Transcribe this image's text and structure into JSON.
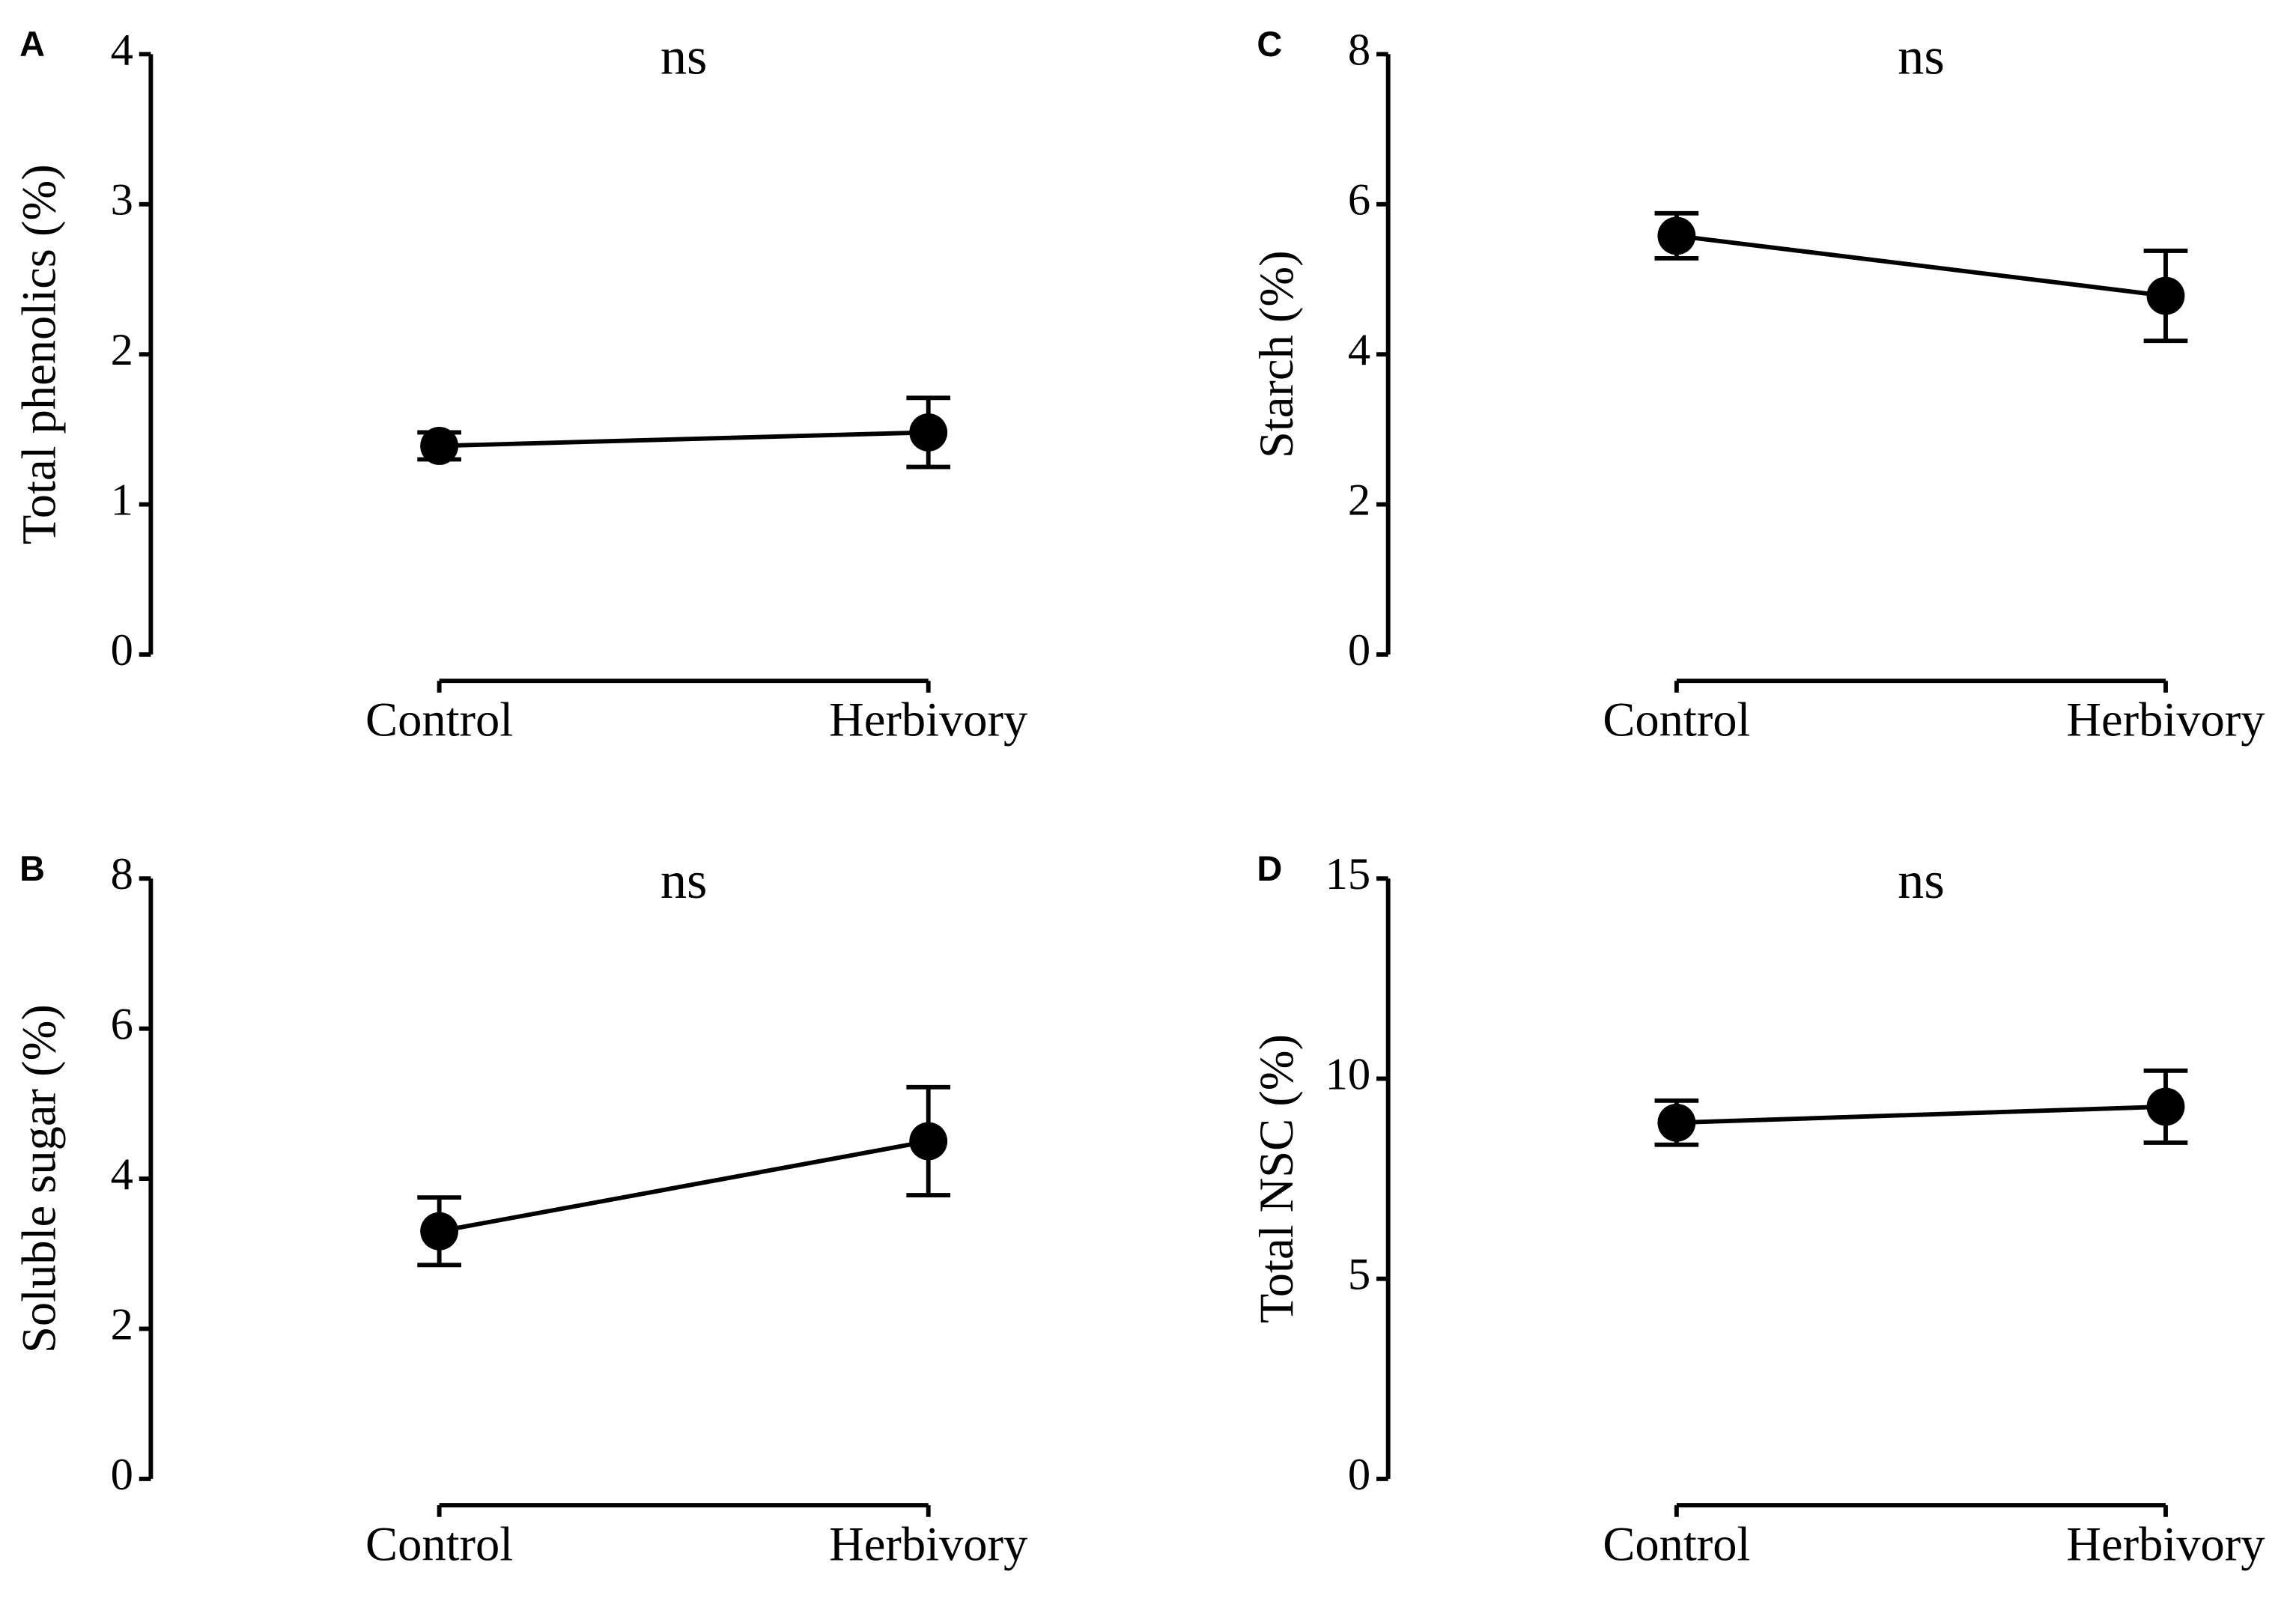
{
  "chart_data": [
    {
      "type": "line",
      "panel": "A",
      "annotation": "ns",
      "y_label": "Total phenolics (%)",
      "categories": [
        "Control",
        "Herbivory"
      ],
      "values": [
        1.39,
        1.48
      ],
      "errors": [
        0.09,
        0.23
      ],
      "color": "#000000",
      "ylim": [
        0,
        4
      ],
      "yticks": [
        0,
        1,
        2,
        3,
        4
      ]
    },
    {
      "type": "line",
      "panel": "B",
      "annotation": "ns",
      "y_label": "Soluble sugar (%)",
      "categories": [
        "Control",
        "Herbivory"
      ],
      "values": [
        3.3,
        4.5
      ],
      "errors": [
        0.45,
        0.72
      ],
      "color": "#000000",
      "ylim": [
        0,
        8
      ],
      "yticks": [
        0,
        2,
        4,
        6,
        8
      ]
    },
    {
      "type": "line",
      "panel": "C",
      "annotation": "ns",
      "y_label": "Starch (%)",
      "categories": [
        "Control",
        "Herbivory"
      ],
      "values": [
        5.58,
        4.78
      ],
      "errors": [
        0.3,
        0.6
      ],
      "color": "#000000",
      "ylim": [
        0,
        8
      ],
      "yticks": [
        0,
        2,
        4,
        6,
        8
      ]
    },
    {
      "type": "line",
      "panel": "D",
      "annotation": "ns",
      "y_label": "Total NSC (%)",
      "categories": [
        "Control",
        "Herbivory"
      ],
      "values": [
        8.9,
        9.3
      ],
      "errors": [
        0.55,
        0.9
      ],
      "color": "#000000",
      "ylim": [
        0,
        15
      ],
      "yticks": [
        0,
        5,
        10,
        15
      ]
    }
  ]
}
